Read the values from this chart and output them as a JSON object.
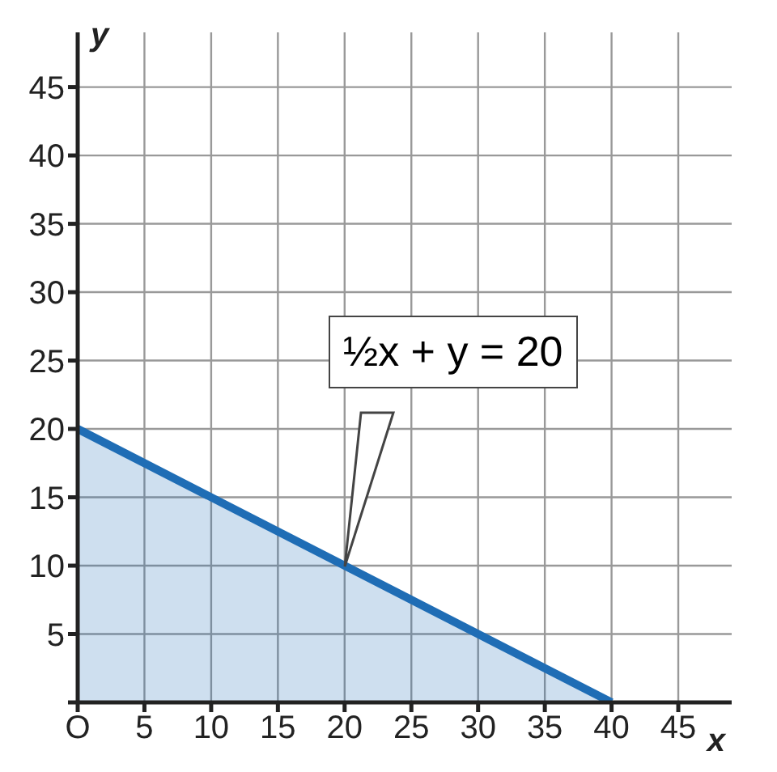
{
  "chart_data": {
    "type": "area",
    "x": [
      0,
      40
    ],
    "series": [
      {
        "color": "#1f6db5",
        "values": [
          20,
          0
        ]
      }
    ],
    "xlabel": "x",
    "ylabel": "y",
    "xlim": [
      0,
      49
    ],
    "ylim": [
      0,
      49
    ],
    "xticks": [
      {
        "value": 0,
        "label": "O"
      },
      5,
      10,
      15,
      20,
      25,
      30,
      35,
      40,
      45
    ],
    "yticks": [
      {
        "value": 0,
        "label": null
      },
      5,
      10,
      15,
      20,
      25,
      30,
      35,
      40,
      45
    ],
    "grid": true,
    "legend": false,
    "annotations": [
      {
        "text": "½x + y = 20",
        "x": 20,
        "y": 10
      }
    ]
  }
}
